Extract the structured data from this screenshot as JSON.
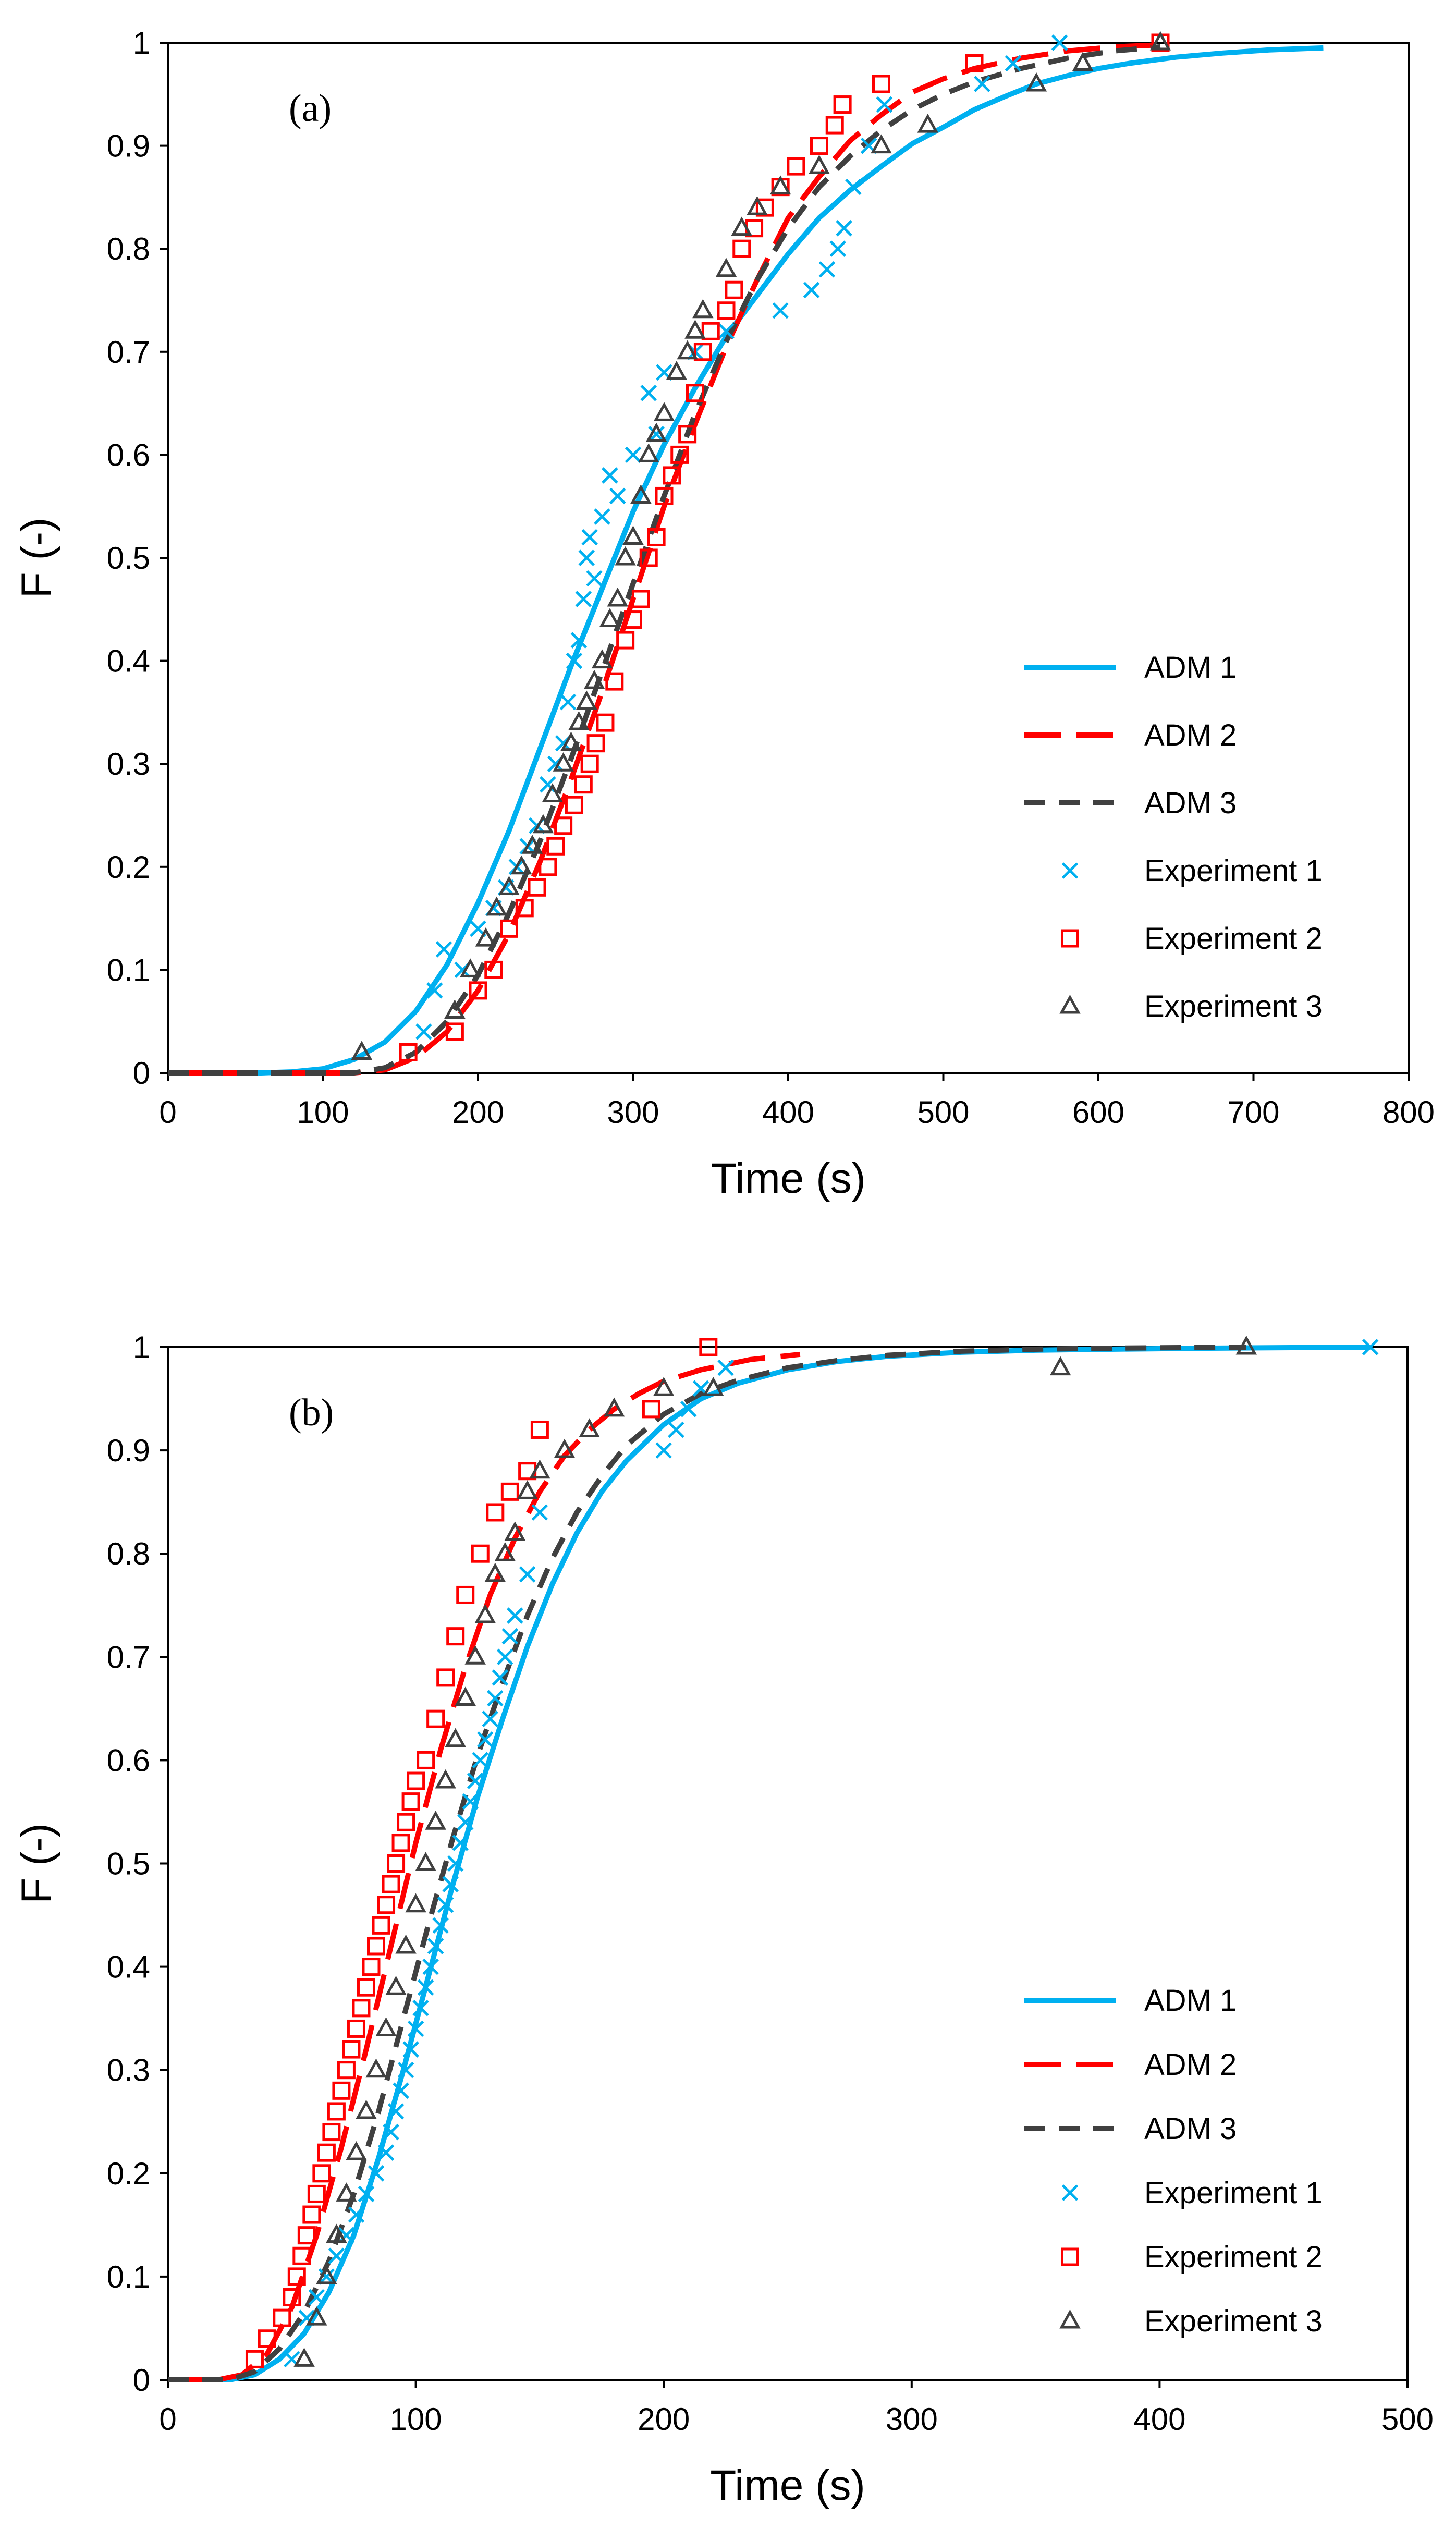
{
  "colors": {
    "adm1": "#00B0F0",
    "adm2": "#FF0000",
    "adm3": "#404040",
    "axis": "#000000"
  },
  "legend_labels": [
    "ADM 1",
    "ADM 2",
    "ADM 3",
    "Experiment 1",
    "Experiment 2",
    "Experiment 3"
  ],
  "chart_data": [
    {
      "type": "scatter",
      "panel_label": "(a)",
      "xlabel": "Time (s)",
      "ylabel": "F (-)",
      "xlim": [
        0,
        800
      ],
      "ylim": [
        0,
        1
      ],
      "xticks": [
        0,
        100,
        200,
        300,
        400,
        500,
        600,
        700,
        800
      ],
      "yticks": [
        0,
        0.1,
        0.2,
        0.3,
        0.4,
        0.5,
        0.6,
        0.7,
        0.8,
        0.9,
        1
      ],
      "xtick_labels": [
        "0",
        "100",
        "200",
        "300",
        "400",
        "500",
        "600",
        "700",
        "800"
      ],
      "ytick_labels": [
        "0",
        "0.1",
        "0.2",
        "0.3",
        "0.4",
        "0.5",
        "0.6",
        "0.7",
        "0.8",
        "0.9",
        "1"
      ],
      "legend_position": "bottom-right",
      "series": [
        {
          "name": "ADM 1",
          "kind": "line",
          "style": "solid",
          "x": [
            0,
            60,
            80,
            100,
            120,
            140,
            160,
            180,
            200,
            220,
            240,
            260,
            280,
            300,
            320,
            340,
            360,
            380,
            400,
            420,
            440,
            460,
            480,
            500,
            520,
            540,
            560,
            580,
            600,
            620,
            650,
            680,
            710,
            745
          ],
          "y": [
            0,
            0,
            0.001,
            0.004,
            0.013,
            0.03,
            0.06,
            0.105,
            0.165,
            0.235,
            0.315,
            0.395,
            0.47,
            0.545,
            0.61,
            0.665,
            0.715,
            0.755,
            0.795,
            0.83,
            0.857,
            0.88,
            0.902,
            0.918,
            0.935,
            0.948,
            0.96,
            0.968,
            0.975,
            0.98,
            0.986,
            0.99,
            0.993,
            0.995
          ]
        },
        {
          "name": "ADM 2",
          "kind": "line",
          "style": "long-dash",
          "x": [
            0,
            120,
            140,
            160,
            180,
            200,
            220,
            240,
            260,
            280,
            300,
            320,
            340,
            360,
            380,
            400,
            420,
            440,
            460,
            480,
            500,
            520,
            550,
            580,
            610,
            640
          ],
          "y": [
            0,
            0,
            0.003,
            0.015,
            0.04,
            0.08,
            0.135,
            0.205,
            0.285,
            0.37,
            0.46,
            0.55,
            0.63,
            0.705,
            0.77,
            0.83,
            0.87,
            0.905,
            0.93,
            0.952,
            0.965,
            0.975,
            0.985,
            0.992,
            0.996,
            0.998
          ]
        },
        {
          "name": "ADM 3",
          "kind": "line",
          "style": "dash",
          "x": [
            0,
            120,
            140,
            160,
            180,
            200,
            220,
            240,
            260,
            280,
            300,
            320,
            340,
            360,
            380,
            400,
            420,
            440,
            460,
            480,
            500,
            520,
            550,
            580,
            610,
            640
          ],
          "y": [
            0,
            0,
            0.005,
            0.02,
            0.05,
            0.095,
            0.155,
            0.225,
            0.305,
            0.39,
            0.475,
            0.56,
            0.64,
            0.71,
            0.77,
            0.82,
            0.86,
            0.89,
            0.915,
            0.935,
            0.95,
            0.962,
            0.975,
            0.985,
            0.992,
            0.996
          ]
        },
        {
          "name": "Experiment 1",
          "kind": "marker",
          "marker": "x",
          "x": [
            165,
            172,
            178,
            190,
            200,
            210,
            218,
            225,
            232,
            238,
            245,
            250,
            255,
            258,
            262,
            265,
            268,
            270,
            272,
            275,
            280,
            285,
            290,
            300,
            310,
            315,
            320,
            340,
            360,
            395,
            415,
            425,
            432,
            436,
            442,
            452,
            462,
            525,
            545,
            575
          ],
          "y": [
            0.04,
            0.08,
            0.12,
            0.1,
            0.14,
            0.16,
            0.18,
            0.2,
            0.22,
            0.24,
            0.28,
            0.3,
            0.32,
            0.36,
            0.4,
            0.42,
            0.46,
            0.5,
            0.52,
            0.48,
            0.54,
            0.58,
            0.56,
            0.6,
            0.66,
            0.62,
            0.68,
            0.7,
            0.72,
            0.74,
            0.76,
            0.78,
            0.8,
            0.82,
            0.86,
            0.9,
            0.94,
            0.96,
            0.98,
            1.0
          ]
        },
        {
          "name": "Experiment 2",
          "kind": "marker",
          "marker": "square",
          "x": [
            155,
            185,
            200,
            210,
            220,
            230,
            238,
            245,
            250,
            255,
            262,
            268,
            272,
            276,
            282,
            288,
            295,
            300,
            305,
            310,
            315,
            320,
            325,
            330,
            335,
            340,
            345,
            350,
            360,
            365,
            370,
            378,
            385,
            395,
            405,
            420,
            430,
            435,
            460,
            520,
            640
          ],
          "y": [
            0.02,
            0.04,
            0.08,
            0.1,
            0.14,
            0.16,
            0.18,
            0.2,
            0.22,
            0.24,
            0.26,
            0.28,
            0.3,
            0.32,
            0.34,
            0.38,
            0.42,
            0.44,
            0.46,
            0.5,
            0.52,
            0.56,
            0.58,
            0.6,
            0.62,
            0.66,
            0.7,
            0.72,
            0.74,
            0.76,
            0.8,
            0.82,
            0.84,
            0.86,
            0.88,
            0.9,
            0.92,
            0.94,
            0.96,
            0.98,
            1.0
          ]
        },
        {
          "name": "Experiment 3",
          "kind": "marker",
          "marker": "triangle",
          "x": [
            125,
            185,
            195,
            205,
            212,
            220,
            228,
            235,
            242,
            248,
            255,
            260,
            265,
            270,
            275,
            280,
            285,
            290,
            295,
            300,
            305,
            310,
            315,
            320,
            328,
            335,
            340,
            345,
            360,
            370,
            380,
            395,
            420,
            460,
            490,
            560,
            590,
            640
          ],
          "y": [
            0.02,
            0.06,
            0.1,
            0.13,
            0.16,
            0.18,
            0.2,
            0.22,
            0.24,
            0.27,
            0.3,
            0.32,
            0.34,
            0.36,
            0.38,
            0.4,
            0.44,
            0.46,
            0.5,
            0.52,
            0.56,
            0.6,
            0.62,
            0.64,
            0.68,
            0.7,
            0.72,
            0.74,
            0.78,
            0.82,
            0.84,
            0.86,
            0.88,
            0.9,
            0.92,
            0.96,
            0.98,
            1.0
          ]
        }
      ]
    },
    {
      "type": "scatter",
      "panel_label": "(b)",
      "xlabel": "Time (s)",
      "ylabel": "F (-)",
      "xlim": [
        0,
        500
      ],
      "ylim": [
        0,
        1
      ],
      "xticks": [
        0,
        100,
        200,
        300,
        400,
        500
      ],
      "yticks": [
        0,
        0.1,
        0.2,
        0.3,
        0.4,
        0.5,
        0.6,
        0.7,
        0.8,
        0.9,
        1
      ],
      "xtick_labels": [
        "0",
        "100",
        "200",
        "300",
        "400",
        "500"
      ],
      "ytick_labels": [
        "0",
        "0.1",
        "0.2",
        "0.3",
        "0.4",
        "0.5",
        "0.6",
        "0.7",
        "0.8",
        "0.9",
        "1"
      ],
      "legend_position": "bottom-right",
      "series": [
        {
          "name": "ADM 1",
          "kind": "line",
          "style": "solid",
          "x": [
            0,
            25,
            35,
            45,
            55,
            65,
            75,
            85,
            95,
            105,
            115,
            125,
            135,
            145,
            155,
            165,
            175,
            185,
            200,
            215,
            230,
            250,
            270,
            290,
            320,
            350,
            380,
            420,
            485
          ],
          "y": [
            0,
            0,
            0.005,
            0.02,
            0.045,
            0.085,
            0.14,
            0.215,
            0.3,
            0.39,
            0.48,
            0.565,
            0.64,
            0.71,
            0.77,
            0.82,
            0.86,
            0.89,
            0.925,
            0.95,
            0.965,
            0.978,
            0.986,
            0.991,
            0.995,
            0.997,
            0.998,
            0.999,
            1.0
          ]
        },
        {
          "name": "ADM 2",
          "kind": "line",
          "style": "long-dash",
          "x": [
            0,
            20,
            30,
            40,
            50,
            60,
            70,
            80,
            90,
            100,
            110,
            120,
            130,
            140,
            150,
            160,
            170,
            180,
            190,
            200,
            215,
            235,
            255
          ],
          "y": [
            0,
            0,
            0.005,
            0.025,
            0.07,
            0.14,
            0.225,
            0.32,
            0.42,
            0.52,
            0.61,
            0.69,
            0.76,
            0.815,
            0.86,
            0.895,
            0.92,
            0.94,
            0.955,
            0.967,
            0.978,
            0.988,
            0.993
          ]
        },
        {
          "name": "ADM 3",
          "kind": "line",
          "style": "dash",
          "x": [
            0,
            25,
            35,
            45,
            55,
            65,
            75,
            85,
            95,
            105,
            115,
            125,
            135,
            145,
            155,
            165,
            175,
            185,
            200,
            215,
            230,
            250,
            270,
            290,
            320,
            350,
            380,
            435
          ],
          "y": [
            0,
            0,
            0.008,
            0.03,
            0.065,
            0.115,
            0.18,
            0.26,
            0.35,
            0.44,
            0.525,
            0.605,
            0.675,
            0.74,
            0.795,
            0.84,
            0.875,
            0.905,
            0.935,
            0.955,
            0.968,
            0.98,
            0.987,
            0.992,
            0.996,
            0.998,
            0.999,
            1.0
          ]
        },
        {
          "name": "Experiment 1",
          "kind": "marker",
          "marker": "x",
          "x": [
            50,
            56,
            60,
            64,
            68,
            72,
            76,
            80,
            84,
            88,
            90,
            92,
            94,
            96,
            98,
            100,
            102,
            104,
            106,
            108,
            110,
            112,
            114,
            116,
            118,
            120,
            122,
            124,
            126,
            128,
            130,
            132,
            134,
            136,
            138,
            140,
            145,
            150,
            200,
            205,
            210,
            215,
            225,
            485
          ],
          "y": [
            0.02,
            0.06,
            0.08,
            0.1,
            0.12,
            0.14,
            0.16,
            0.18,
            0.2,
            0.22,
            0.24,
            0.26,
            0.28,
            0.3,
            0.32,
            0.34,
            0.36,
            0.38,
            0.4,
            0.42,
            0.44,
            0.46,
            0.48,
            0.5,
            0.52,
            0.54,
            0.56,
            0.58,
            0.6,
            0.62,
            0.64,
            0.66,
            0.68,
            0.7,
            0.72,
            0.74,
            0.78,
            0.84,
            0.9,
            0.92,
            0.94,
            0.96,
            0.98,
            1.0
          ]
        },
        {
          "name": "Experiment 2",
          "kind": "marker",
          "marker": "square",
          "x": [
            35,
            40,
            46,
            50,
            52,
            54,
            56,
            58,
            60,
            62,
            64,
            66,
            68,
            70,
            72,
            74,
            76,
            78,
            80,
            82,
            84,
            86,
            88,
            90,
            92,
            94,
            96,
            98,
            100,
            104,
            108,
            112,
            116,
            120,
            126,
            132,
            138,
            145,
            150,
            195,
            218
          ],
          "y": [
            0.02,
            0.04,
            0.06,
            0.08,
            0.1,
            0.12,
            0.14,
            0.16,
            0.18,
            0.2,
            0.22,
            0.24,
            0.26,
            0.28,
            0.3,
            0.32,
            0.34,
            0.36,
            0.38,
            0.4,
            0.42,
            0.44,
            0.46,
            0.48,
            0.5,
            0.52,
            0.54,
            0.56,
            0.58,
            0.6,
            0.64,
            0.68,
            0.72,
            0.76,
            0.8,
            0.84,
            0.86,
            0.88,
            0.92,
            0.94,
            1.0
          ]
        },
        {
          "name": "Experiment 3",
          "kind": "marker",
          "marker": "triangle",
          "x": [
            55,
            60,
            64,
            68,
            72,
            76,
            80,
            84,
            88,
            92,
            96,
            100,
            104,
            108,
            112,
            116,
            120,
            124,
            128,
            132,
            136,
            140,
            145,
            150,
            160,
            170,
            180,
            200,
            220,
            360,
            435
          ],
          "y": [
            0.02,
            0.06,
            0.1,
            0.14,
            0.18,
            0.22,
            0.26,
            0.3,
            0.34,
            0.38,
            0.42,
            0.46,
            0.5,
            0.54,
            0.58,
            0.62,
            0.66,
            0.7,
            0.74,
            0.78,
            0.8,
            0.82,
            0.86,
            0.88,
            0.9,
            0.92,
            0.94,
            0.96,
            0.96,
            0.98,
            1.0
          ]
        }
      ]
    }
  ]
}
